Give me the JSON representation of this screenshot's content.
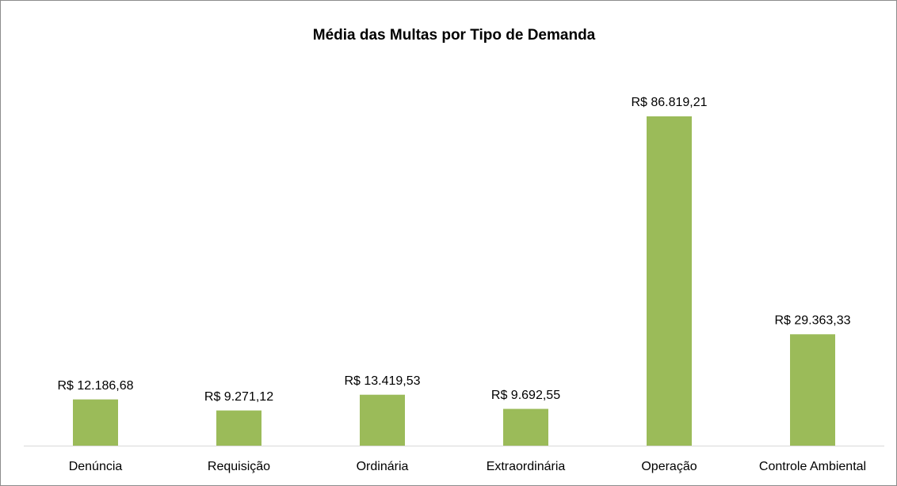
{
  "chart_data": {
    "type": "bar",
    "title": "Média das Multas por Tipo de Demanda",
    "categories": [
      "Denúncia",
      "Requisição",
      "Ordinária",
      "Extraordinária",
      "Operação",
      "Controle Ambiental"
    ],
    "values": [
      12186.68,
      9271.12,
      13419.53,
      9692.55,
      86819.21,
      29363.33
    ],
    "value_labels": [
      "R$ 12.186,68",
      "R$ 9.271,12",
      "R$ 13.419,53",
      "R$ 9.692,55",
      "R$ 86.819,21",
      "R$ 29.363,33"
    ],
    "color": "#9bbb59"
  }
}
